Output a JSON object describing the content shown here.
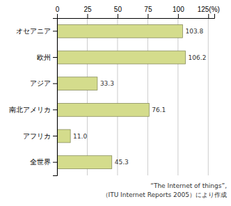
{
  "chart_data": {
    "type": "bar",
    "orientation": "horizontal",
    "categories": [
      "全世界",
      "アフリカ",
      "南北アメリカ",
      "アジア",
      "欧州",
      "オセアニア"
    ],
    "values": [
      45.3,
      11.0,
      76.1,
      33.3,
      106.2,
      103.8
    ],
    "value_labels": [
      "45.3",
      "11.0",
      "76.1",
      "33.3",
      "106.2",
      "103.8"
    ],
    "data_labels": true,
    "color": "#d4dc8c",
    "xlim": [
      0,
      130
    ],
    "xticks": [
      0,
      25,
      50,
      75,
      100,
      {
        "value": 125,
        "label": "125(%)"
      }
    ],
    "grid": true,
    "annotations": [
      "“The Internet of things”,",
      "（ITU Internet Reports 2005）により作成"
    ]
  }
}
